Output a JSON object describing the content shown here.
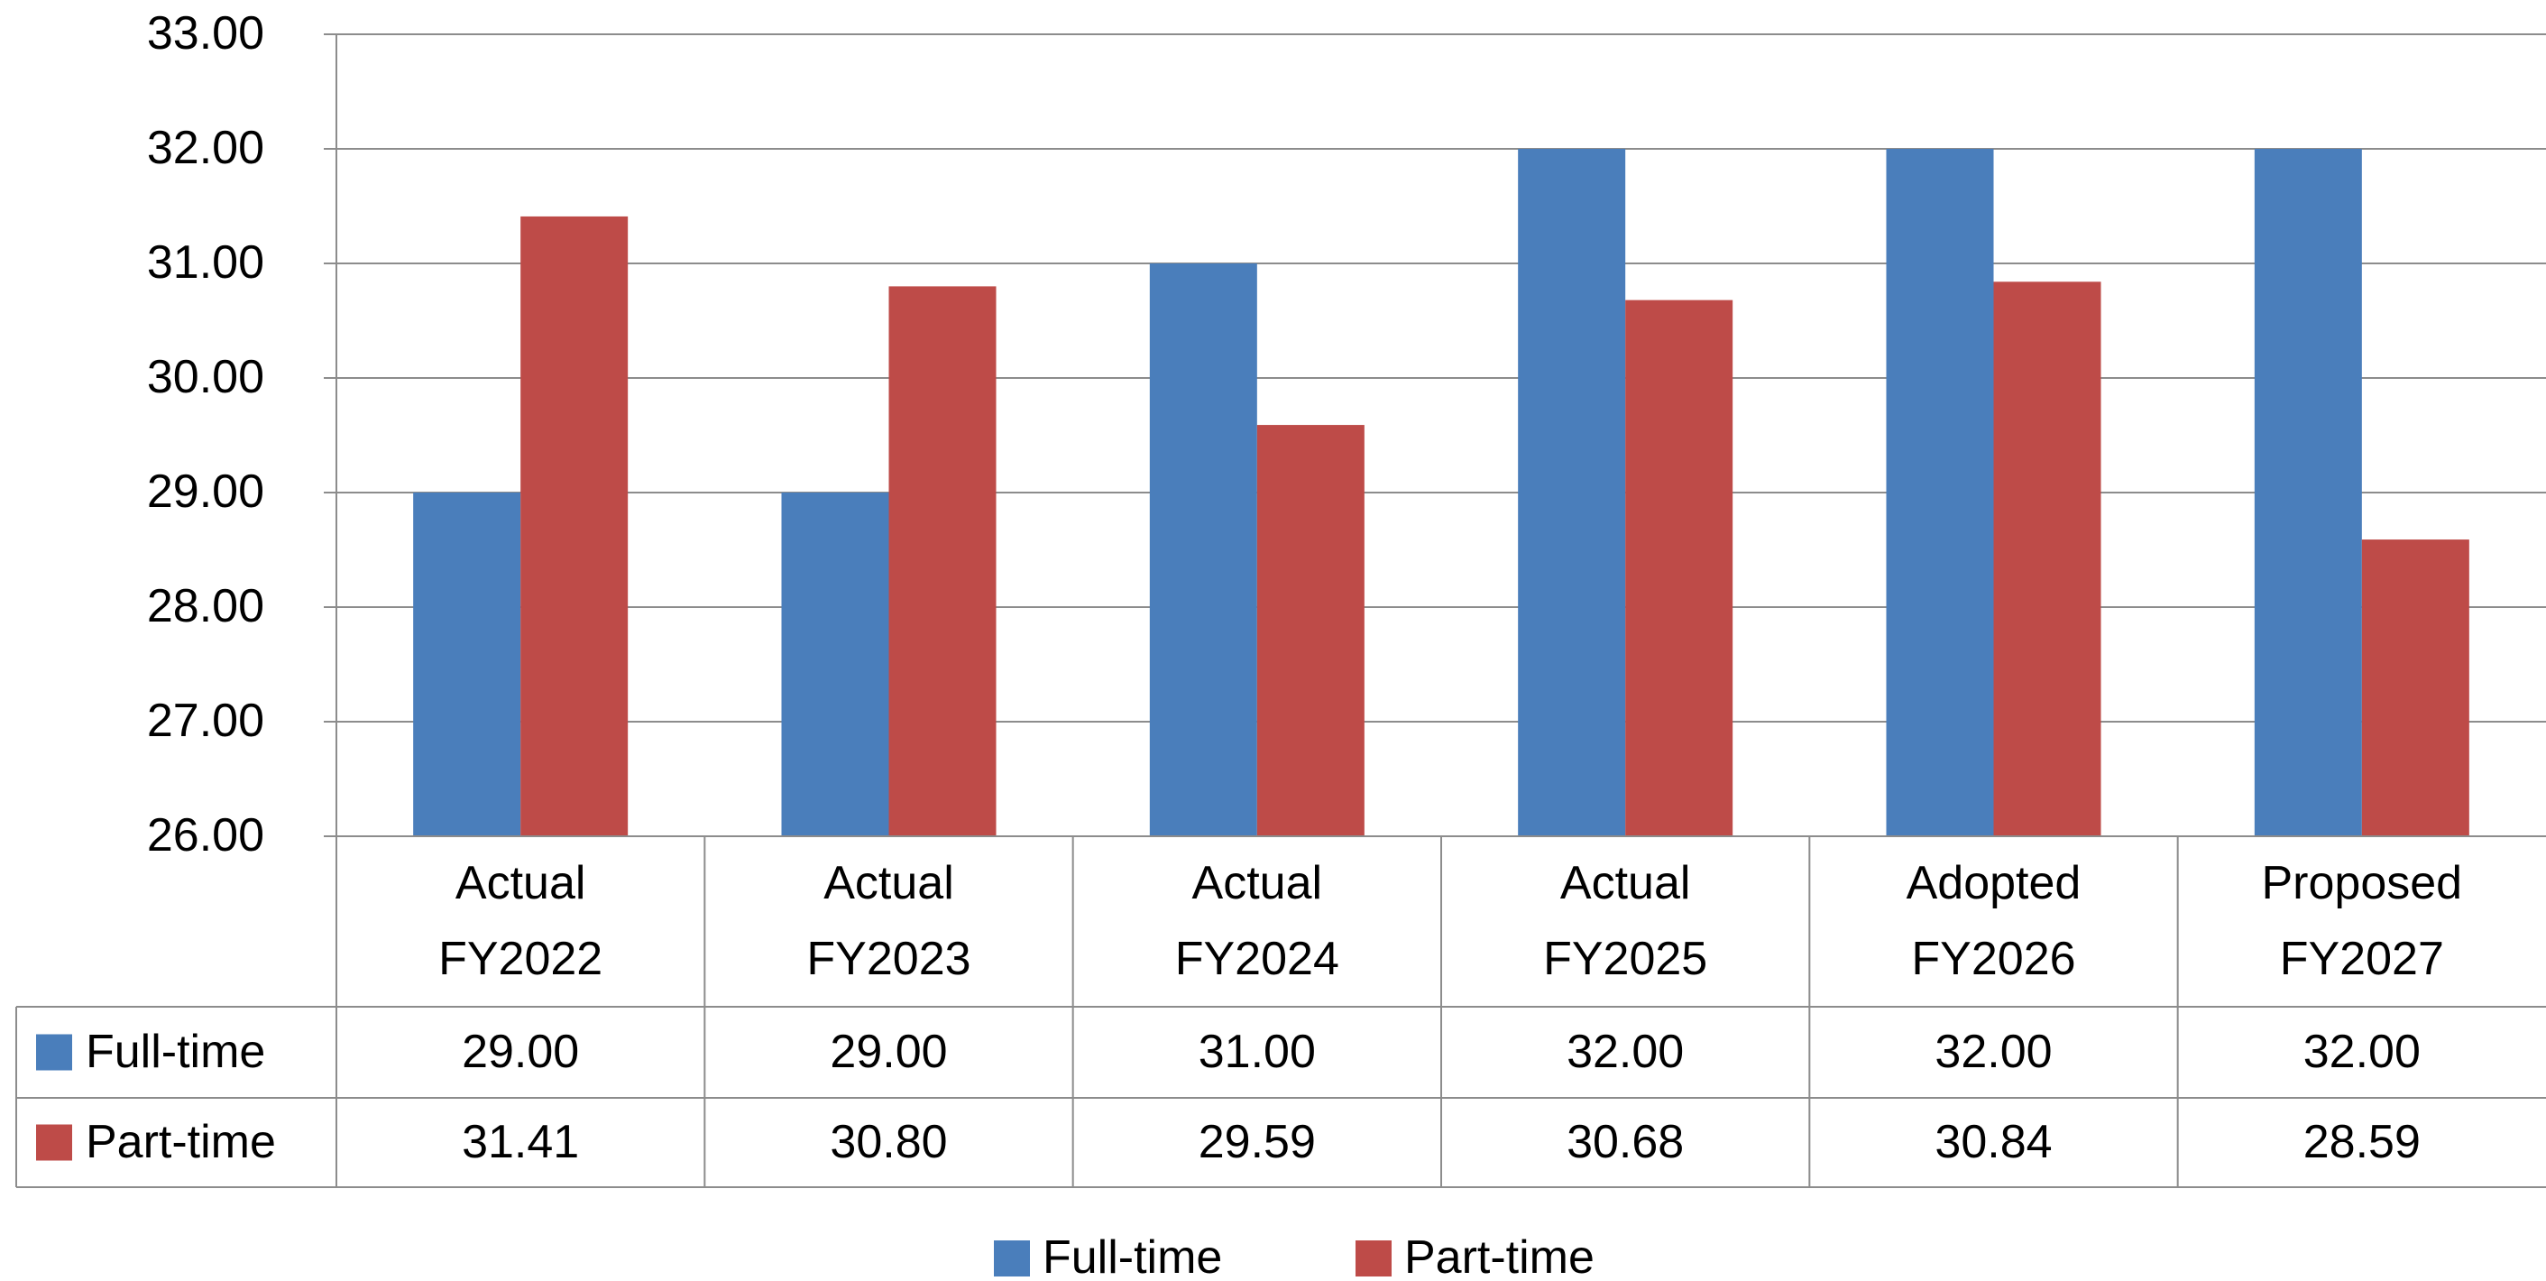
{
  "chart_data": {
    "type": "bar",
    "categories": [
      "Actual FY2022",
      "Actual FY2023",
      "Actual FY2024",
      "Actual FY2025",
      "Adopted FY2026",
      "Proposed FY2027"
    ],
    "series": [
      {
        "name": "Full-time",
        "color": "#4a7ebb",
        "values": [
          29,
          29,
          31,
          32,
          32,
          32
        ],
        "value_labels": [
          "29.00",
          "29.00",
          "31.00",
          "32.00",
          "32.00",
          "32.00"
        ]
      },
      {
        "name": "Part-time",
        "color": "#be4b48",
        "values": [
          31.41,
          30.8,
          29.59,
          30.68,
          30.84,
          28.59
        ],
        "value_labels": [
          "31.41",
          "30.80",
          "29.59",
          "30.68",
          "30.84",
          "28.59"
        ]
      }
    ],
    "ylim": [
      26,
      33
    ],
    "yticks": [
      {
        "value": 26,
        "label": "26.00"
      },
      {
        "value": 27,
        "label": "27.00"
      },
      {
        "value": 28,
        "label": "28.00"
      },
      {
        "value": 29,
        "label": "29.00"
      },
      {
        "value": 30,
        "label": "30.00"
      },
      {
        "value": 31,
        "label": "31.00"
      },
      {
        "value": 32,
        "label": "32.00"
      },
      {
        "value": 33,
        "label": "33.00"
      }
    ],
    "grid": true,
    "legend": "bottom"
  }
}
